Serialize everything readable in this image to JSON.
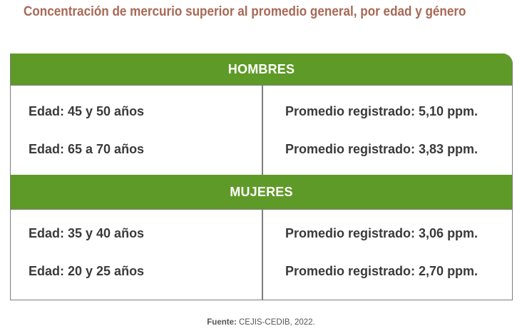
{
  "title": "Concentración de mercurio superior al promedio general, por edad y género",
  "sections": [
    {
      "header": "HOMBRES",
      "rows": [
        {
          "age": "Edad: 45 y 50 años",
          "average": "Promedio registrado: 5,10 ppm."
        },
        {
          "age": "Edad: 65 a 70 años",
          "average": "Promedio registrado: 3,83 ppm."
        }
      ]
    },
    {
      "header": "MUJERES",
      "rows": [
        {
          "age": "Edad: 35 y 40 años",
          "average": "Promedio registrado: 3,06 ppm."
        },
        {
          "age": "Edad: 20 y 25 años",
          "average": "Promedio registrado: 2,70 ppm."
        }
      ]
    }
  ],
  "source": {
    "label": "Fuente:",
    "text": "CEJIS-CEDIB, 2022."
  },
  "colors": {
    "header_green": "#5e9a27",
    "title_brown": "#a76956",
    "text": "#3a3a3a"
  }
}
